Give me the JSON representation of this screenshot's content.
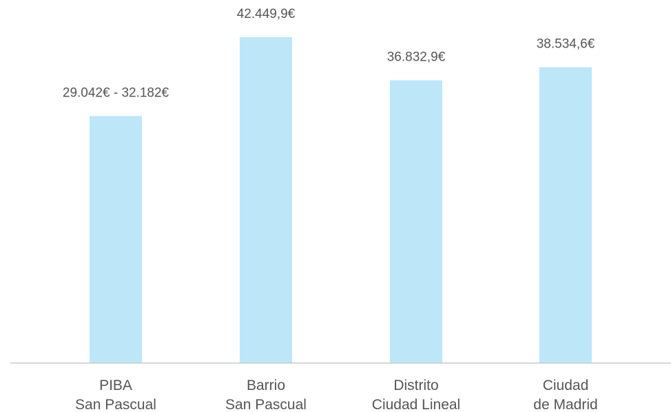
{
  "chart_data": {
    "type": "bar",
    "categories": [
      [
        "PIBA",
        "San Pascual"
      ],
      [
        "Barrio",
        "San Pascual"
      ],
      [
        "Distrito",
        "Ciudad Lineal"
      ],
      [
        "Ciudad",
        "de Madrid"
      ]
    ],
    "values": [
      32182,
      42449.9,
      36832.9,
      38534.6
    ],
    "data_labels": [
      "29.042€ - 32.182€",
      "42.449,9€",
      "36.832,9€",
      "38.534,6€"
    ],
    "ylim": [
      0,
      45000
    ],
    "grid": false,
    "legend": "none",
    "bar_color": "#bde6f8"
  }
}
